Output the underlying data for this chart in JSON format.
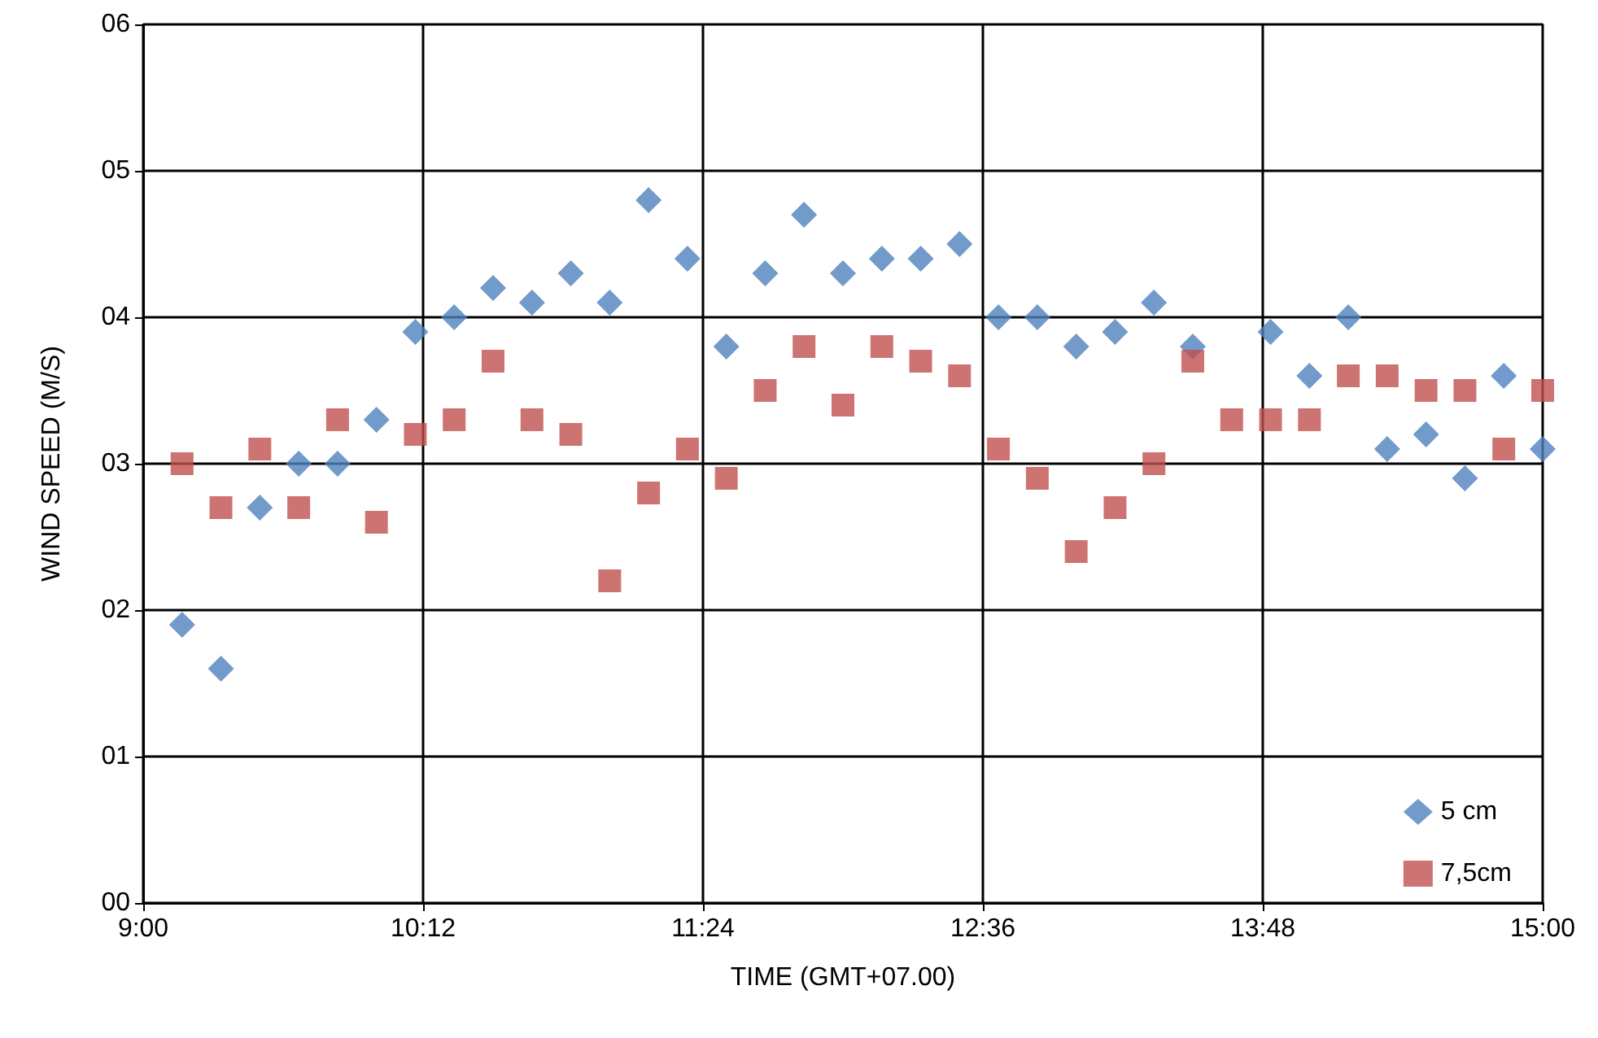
{
  "chart_data": {
    "type": "scatter",
    "xlabel": "TIME (GMT+07.00)",
    "ylabel": "WIND SPEED (M/S)",
    "x": [
      9.1667,
      9.3333,
      9.5,
      9.6667,
      9.8333,
      10,
      10.1667,
      10.3333,
      10.5,
      10.6667,
      10.8333,
      11,
      11.1667,
      11.3333,
      11.5,
      11.6667,
      11.8333,
      12,
      12.1667,
      12.3333,
      12.5,
      12.6667,
      12.8333,
      13,
      13.1667,
      13.3333,
      13.5,
      13.6667,
      13.8333,
      14,
      14.1667,
      14.3333,
      14.5,
      14.6667,
      14.8333,
      15
    ],
    "series": [
      {
        "name": "5 cm",
        "color": "#4f81bd",
        "marker": "diamond",
        "values": [
          1.9,
          1.6,
          2.7,
          3.0,
          3.0,
          3.3,
          3.9,
          4.0,
          4.2,
          4.1,
          4.3,
          4.1,
          4.8,
          4.4,
          3.8,
          4.3,
          4.7,
          4.3,
          4.4,
          4.4,
          4.5,
          4.0,
          4.0,
          3.8,
          3.9,
          4.1,
          3.8,
          null,
          3.9,
          3.6,
          4.0,
          3.1,
          3.2,
          2.9,
          3.6,
          3.1
        ]
      },
      {
        "name": "7,5cm",
        "color": "#c0504d",
        "marker": "square",
        "values": [
          3.0,
          2.7,
          3.1,
          2.7,
          3.3,
          2.6,
          3.2,
          3.3,
          3.7,
          3.3,
          3.2,
          2.2,
          2.8,
          3.1,
          2.9,
          3.5,
          3.8,
          3.4,
          3.8,
          3.7,
          3.6,
          3.1,
          2.9,
          2.4,
          2.7,
          3.0,
          3.7,
          3.3,
          3.3,
          3.3,
          3.6,
          3.6,
          3.5,
          3.5,
          3.1,
          3.5
        ]
      }
    ],
    "xlim": [
      9,
      15
    ],
    "xticks": [
      {
        "value": 9,
        "label": "9:00"
      },
      {
        "value": 10.2,
        "label": "10:12"
      },
      {
        "value": 11.4,
        "label": "11:24"
      },
      {
        "value": 12.6,
        "label": "12:36"
      },
      {
        "value": 13.8,
        "label": "13:48"
      },
      {
        "value": 15,
        "label": "15:00"
      }
    ],
    "ylim": [
      0,
      6
    ],
    "yticks": [
      {
        "value": 0,
        "label": "00"
      },
      {
        "value": 1,
        "label": "01"
      },
      {
        "value": 2,
        "label": "02"
      },
      {
        "value": 3,
        "label": "03"
      },
      {
        "value": 4,
        "label": "04"
      },
      {
        "value": 5,
        "label": "05"
      },
      {
        "value": 6,
        "label": "06"
      }
    ],
    "grid": true,
    "legend": "bottom right"
  }
}
